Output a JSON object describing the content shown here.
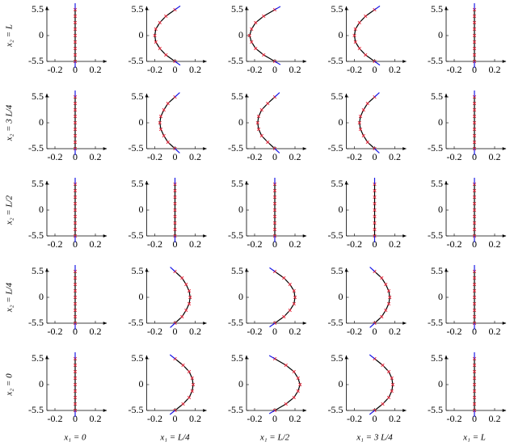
{
  "chart_data": [
    {
      "type": "line",
      "ylabel": "x₂ = L",
      "x": [
        0,
        0,
        0,
        0,
        0,
        0,
        0,
        0,
        0
      ],
      "y": [
        -5.5,
        -4.125,
        -2.75,
        -1.375,
        0,
        1.375,
        2.75,
        4.125,
        5.5
      ],
      "xlim": [
        -0.28,
        0.28
      ],
      "ylim": [
        -5.5,
        5.5
      ],
      "xticks": [
        -0.2,
        0,
        0.2
      ],
      "yticks": [
        -5.5,
        0,
        5.5
      ],
      "color": "#000000",
      "marker_color": "#e8283c"
    },
    {
      "type": "line",
      "x": [
        0,
        -0.09,
        -0.15,
        -0.19,
        -0.2,
        -0.19,
        -0.15,
        -0.09,
        0
      ],
      "y": [
        -5.5,
        -4.125,
        -2.75,
        -1.375,
        0,
        1.375,
        2.75,
        4.125,
        5.5
      ],
      "xlim": [
        -0.28,
        0.28
      ],
      "ylim": [
        -5.5,
        5.5
      ],
      "xticks": [
        -0.2,
        0,
        0.2
      ],
      "yticks": [
        -5.5,
        0,
        5.5
      ],
      "color": "#000000",
      "marker_color": "#e8283c"
    },
    {
      "type": "line",
      "x": [
        0,
        -0.11,
        -0.19,
        -0.23,
        -0.25,
        -0.23,
        -0.19,
        -0.11,
        0
      ],
      "y": [
        -5.5,
        -4.125,
        -2.75,
        -1.375,
        0,
        1.375,
        2.75,
        4.125,
        5.5
      ],
      "xlim": [
        -0.28,
        0.28
      ],
      "ylim": [
        -5.5,
        5.5
      ],
      "xticks": [
        -0.2,
        0,
        0.2
      ],
      "yticks": [
        -5.5,
        0,
        5.5
      ],
      "color": "#000000",
      "marker_color": "#e8283c"
    },
    {
      "type": "line",
      "x": [
        0,
        -0.09,
        -0.15,
        -0.19,
        -0.2,
        -0.19,
        -0.15,
        -0.09,
        0
      ],
      "y": [
        -5.5,
        -4.125,
        -2.75,
        -1.375,
        0,
        1.375,
        2.75,
        4.125,
        5.5
      ],
      "xlim": [
        -0.28,
        0.28
      ],
      "ylim": [
        -5.5,
        5.5
      ],
      "xticks": [
        -0.2,
        0,
        0.2
      ],
      "yticks": [
        -5.5,
        0,
        5.5
      ],
      "color": "#000000",
      "marker_color": "#e8283c"
    },
    {
      "type": "line",
      "x": [
        0,
        0,
        0,
        0,
        0,
        0,
        0,
        0,
        0
      ],
      "y": [
        -5.5,
        -4.125,
        -2.75,
        -1.375,
        0,
        1.375,
        2.75,
        4.125,
        5.5
      ],
      "xlim": [
        -0.28,
        0.28
      ],
      "ylim": [
        -5.5,
        5.5
      ],
      "xticks": [
        -0.2,
        0,
        0.2
      ],
      "yticks": [
        -5.5,
        0,
        5.5
      ],
      "color": "#000000",
      "marker_color": "#e8283c"
    },
    {
      "type": "line",
      "ylabel": "x₂ = 3 L/4",
      "x": [
        0,
        0,
        0,
        0,
        0,
        0,
        0,
        0,
        0
      ],
      "y": [
        -5.5,
        -4.125,
        -2.75,
        -1.375,
        0,
        1.375,
        2.75,
        4.125,
        5.5
      ],
      "xlim": [
        -0.28,
        0.28
      ],
      "ylim": [
        -5.5,
        5.5
      ],
      "xticks": [
        -0.2,
        0,
        0.2
      ],
      "yticks": [
        -5.5,
        0,
        5.5
      ],
      "color": "#000000",
      "marker_color": "#e8283c"
    },
    {
      "type": "line",
      "x": [
        0,
        -0.07,
        -0.11,
        -0.14,
        -0.15,
        -0.14,
        -0.11,
        -0.07,
        0
      ],
      "y": [
        -5.5,
        -4.125,
        -2.75,
        -1.375,
        0,
        1.375,
        2.75,
        4.125,
        5.5
      ],
      "xlim": [
        -0.28,
        0.28
      ],
      "ylim": [
        -5.5,
        5.5
      ],
      "xticks": [
        -0.2,
        0,
        0.2
      ],
      "yticks": [
        -5.5,
        0,
        5.5
      ],
      "color": "#000000",
      "marker_color": "#e8283c"
    },
    {
      "type": "line",
      "x": [
        0,
        -0.07,
        -0.13,
        -0.16,
        -0.17,
        -0.16,
        -0.13,
        -0.07,
        0
      ],
      "y": [
        -5.5,
        -4.125,
        -2.75,
        -1.375,
        0,
        1.375,
        2.75,
        4.125,
        5.5
      ],
      "xlim": [
        -0.28,
        0.28
      ],
      "ylim": [
        -5.5,
        5.5
      ],
      "xticks": [
        -0.2,
        0,
        0.2
      ],
      "yticks": [
        -5.5,
        0,
        5.5
      ],
      "color": "#000000",
      "marker_color": "#e8283c"
    },
    {
      "type": "line",
      "x": [
        0,
        -0.07,
        -0.11,
        -0.14,
        -0.15,
        -0.14,
        -0.11,
        -0.07,
        0
      ],
      "y": [
        -5.5,
        -4.125,
        -2.75,
        -1.375,
        0,
        1.375,
        2.75,
        4.125,
        5.5
      ],
      "xlim": [
        -0.28,
        0.28
      ],
      "ylim": [
        -5.5,
        5.5
      ],
      "xticks": [
        -0.2,
        0,
        0.2
      ],
      "yticks": [
        -5.5,
        0,
        5.5
      ],
      "color": "#000000",
      "marker_color": "#e8283c"
    },
    {
      "type": "line",
      "x": [
        0,
        0,
        0,
        0,
        0,
        0,
        0,
        0,
        0
      ],
      "y": [
        -5.5,
        -4.125,
        -2.75,
        -1.375,
        0,
        1.375,
        2.75,
        4.125,
        5.5
      ],
      "xlim": [
        -0.28,
        0.28
      ],
      "ylim": [
        -5.5,
        5.5
      ],
      "xticks": [
        -0.2,
        0,
        0.2
      ],
      "yticks": [
        -5.5,
        0,
        5.5
      ],
      "color": "#000000",
      "marker_color": "#e8283c"
    },
    {
      "type": "line",
      "ylabel": "x₂ = L/2",
      "x": [
        0,
        0,
        0,
        0,
        0,
        0,
        0,
        0,
        0
      ],
      "y": [
        -5.5,
        -4.125,
        -2.75,
        -1.375,
        0,
        1.375,
        2.75,
        4.125,
        5.5
      ],
      "xlim": [
        -0.28,
        0.28
      ],
      "ylim": [
        -5.5,
        5.5
      ],
      "xticks": [
        -0.2,
        0,
        0.2
      ],
      "yticks": [
        -5.5,
        0,
        5.5
      ],
      "color": "#000000",
      "marker_color": "#e8283c"
    },
    {
      "type": "line",
      "x": [
        0,
        0,
        0,
        0,
        0,
        0,
        0,
        0,
        0
      ],
      "y": [
        -5.5,
        -4.125,
        -2.75,
        -1.375,
        0,
        1.375,
        2.75,
        4.125,
        5.5
      ],
      "xlim": [
        -0.28,
        0.28
      ],
      "ylim": [
        -5.5,
        5.5
      ],
      "xticks": [
        -0.2,
        0,
        0.2
      ],
      "yticks": [
        -5.5,
        0,
        5.5
      ],
      "color": "#000000",
      "marker_color": "#e8283c"
    },
    {
      "type": "line",
      "x": [
        0,
        0,
        0,
        0,
        0,
        0,
        0,
        0,
        0
      ],
      "y": [
        -5.5,
        -4.125,
        -2.75,
        -1.375,
        0,
        1.375,
        2.75,
        4.125,
        5.5
      ],
      "xlim": [
        -0.28,
        0.28
      ],
      "ylim": [
        -5.5,
        5.5
      ],
      "xticks": [
        -0.2,
        0,
        0.2
      ],
      "yticks": [
        -5.5,
        0,
        5.5
      ],
      "color": "#000000",
      "marker_color": "#e8283c"
    },
    {
      "type": "line",
      "x": [
        0,
        0,
        0,
        0,
        0,
        0,
        0,
        0,
        0
      ],
      "y": [
        -5.5,
        -4.125,
        -2.75,
        -1.375,
        0,
        1.375,
        2.75,
        4.125,
        5.5
      ],
      "xlim": [
        -0.28,
        0.28
      ],
      "ylim": [
        -5.5,
        5.5
      ],
      "xticks": [
        -0.2,
        0,
        0.2
      ],
      "yticks": [
        -5.5,
        0,
        5.5
      ],
      "color": "#000000",
      "marker_color": "#e8283c"
    },
    {
      "type": "line",
      "x": [
        0,
        0,
        0,
        0,
        0,
        0,
        0,
        0,
        0
      ],
      "y": [
        -5.5,
        -4.125,
        -2.75,
        -1.375,
        0,
        1.375,
        2.75,
        4.125,
        5.5
      ],
      "xlim": [
        -0.28,
        0.28
      ],
      "ylim": [
        -5.5,
        5.5
      ],
      "xticks": [
        -0.2,
        0,
        0.2
      ],
      "yticks": [
        -5.5,
        0,
        5.5
      ],
      "color": "#000000",
      "marker_color": "#e8283c"
    },
    {
      "type": "line",
      "ylabel": "x₂ = L/4",
      "x": [
        0,
        0,
        0,
        0,
        0,
        0,
        0,
        0,
        0
      ],
      "y": [
        -5.5,
        -4.125,
        -2.75,
        -1.375,
        0,
        1.375,
        2.75,
        4.125,
        5.5
      ],
      "xlim": [
        -0.28,
        0.28
      ],
      "ylim": [
        -5.5,
        5.5
      ],
      "xticks": [
        -0.2,
        0,
        0.2
      ],
      "yticks": [
        -5.5,
        0,
        5.5
      ],
      "color": "#000000",
      "marker_color": "#e8283c"
    },
    {
      "type": "line",
      "x": [
        0,
        0.07,
        0.11,
        0.14,
        0.15,
        0.14,
        0.11,
        0.07,
        0
      ],
      "y": [
        -5.5,
        -4.125,
        -2.75,
        -1.375,
        0,
        1.375,
        2.75,
        4.125,
        5.5
      ],
      "xlim": [
        -0.28,
        0.28
      ],
      "ylim": [
        -5.5,
        5.5
      ],
      "xticks": [
        -0.2,
        0,
        0.2
      ],
      "yticks": [
        -5.5,
        0,
        5.5
      ],
      "color": "#000000",
      "marker_color": "#e8283c"
    },
    {
      "type": "line",
      "x": [
        0,
        0.09,
        0.15,
        0.19,
        0.2,
        0.19,
        0.15,
        0.09,
        0
      ],
      "y": [
        -5.5,
        -4.125,
        -2.75,
        -1.375,
        0,
        1.375,
        2.75,
        4.125,
        5.5
      ],
      "xlim": [
        -0.28,
        0.28
      ],
      "ylim": [
        -5.5,
        5.5
      ],
      "xticks": [
        -0.2,
        0,
        0.2
      ],
      "yticks": [
        -5.5,
        0,
        5.5
      ],
      "color": "#000000",
      "marker_color": "#e8283c"
    },
    {
      "type": "line",
      "x": [
        0,
        0.07,
        0.11,
        0.14,
        0.15,
        0.14,
        0.11,
        0.07,
        0
      ],
      "y": [
        -5.5,
        -4.125,
        -2.75,
        -1.375,
        0,
        1.375,
        2.75,
        4.125,
        5.5
      ],
      "xlim": [
        -0.28,
        0.28
      ],
      "ylim": [
        -5.5,
        5.5
      ],
      "xticks": [
        -0.2,
        0,
        0.2
      ],
      "yticks": [
        -5.5,
        0,
        5.5
      ],
      "color": "#000000",
      "marker_color": "#e8283c"
    },
    {
      "type": "line",
      "x": [
        0,
        0,
        0,
        0,
        0,
        0,
        0,
        0,
        0
      ],
      "y": [
        -5.5,
        -4.125,
        -2.75,
        -1.375,
        0,
        1.375,
        2.75,
        4.125,
        5.5
      ],
      "xlim": [
        -0.28,
        0.28
      ],
      "ylim": [
        -5.5,
        5.5
      ],
      "xticks": [
        -0.2,
        0,
        0.2
      ],
      "yticks": [
        -5.5,
        0,
        5.5
      ],
      "color": "#000000",
      "marker_color": "#e8283c"
    },
    {
      "type": "line",
      "ylabel": "x₂ = 0",
      "xlabel": "x₁ = 0",
      "x": [
        0,
        0,
        0,
        0,
        0,
        0,
        0,
        0,
        0
      ],
      "y": [
        -5.5,
        -4.125,
        -2.75,
        -1.375,
        0,
        1.375,
        2.75,
        4.125,
        5.5
      ],
      "xlim": [
        -0.28,
        0.28
      ],
      "ylim": [
        -5.5,
        5.5
      ],
      "xticks": [
        -0.2,
        0,
        0.2
      ],
      "yticks": [
        -5.5,
        0,
        5.5
      ],
      "color": "#000000",
      "marker_color": "#e8283c"
    },
    {
      "type": "line",
      "xlabel": "x₁ = L/4",
      "x": [
        0,
        0.08,
        0.14,
        0.17,
        0.18,
        0.17,
        0.14,
        0.08,
        0
      ],
      "y": [
        -5.5,
        -4.125,
        -2.75,
        -1.375,
        0,
        1.375,
        2.75,
        4.125,
        5.5
      ],
      "xlim": [
        -0.28,
        0.28
      ],
      "ylim": [
        -5.5,
        5.5
      ],
      "xticks": [
        -0.2,
        0,
        0.2
      ],
      "yticks": [
        -5.5,
        0,
        5.5
      ],
      "color": "#000000",
      "marker_color": "#e8283c"
    },
    {
      "type": "line",
      "xlabel": "x₁ = L/2",
      "x": [
        0,
        0.11,
        0.19,
        0.23,
        0.25,
        0.23,
        0.19,
        0.11,
        0
      ],
      "y": [
        -5.5,
        -4.125,
        -2.75,
        -1.375,
        0,
        1.375,
        2.75,
        4.125,
        5.5
      ],
      "xlim": [
        -0.28,
        0.28
      ],
      "ylim": [
        -5.5,
        5.5
      ],
      "xticks": [
        -0.2,
        0,
        0.2
      ],
      "yticks": [
        -5.5,
        0,
        5.5
      ],
      "color": "#000000",
      "marker_color": "#e8283c"
    },
    {
      "type": "line",
      "xlabel": "x₁ = 3 L/4",
      "x": [
        0,
        0.08,
        0.14,
        0.17,
        0.18,
        0.17,
        0.14,
        0.08,
        0
      ],
      "y": [
        -5.5,
        -4.125,
        -2.75,
        -1.375,
        0,
        1.375,
        2.75,
        4.125,
        5.5
      ],
      "xlim": [
        -0.28,
        0.28
      ],
      "ylim": [
        -5.5,
        5.5
      ],
      "xticks": [
        -0.2,
        0,
        0.2
      ],
      "yticks": [
        -5.5,
        0,
        5.5
      ],
      "color": "#000000",
      "marker_color": "#e8283c"
    },
    {
      "type": "line",
      "xlabel": "x₁ = L",
      "x": [
        0,
        0,
        0,
        0,
        0,
        0,
        0,
        0,
        0
      ],
      "y": [
        -5.5,
        -4.125,
        -2.75,
        -1.375,
        0,
        1.375,
        2.75,
        4.125,
        5.5
      ],
      "xlim": [
        -0.28,
        0.28
      ],
      "ylim": [
        -5.5,
        5.5
      ],
      "xticks": [
        -0.2,
        0,
        0.2
      ],
      "yticks": [
        -5.5,
        0,
        5.5
      ],
      "color": "#000000",
      "marker_color": "#e8283c"
    }
  ]
}
